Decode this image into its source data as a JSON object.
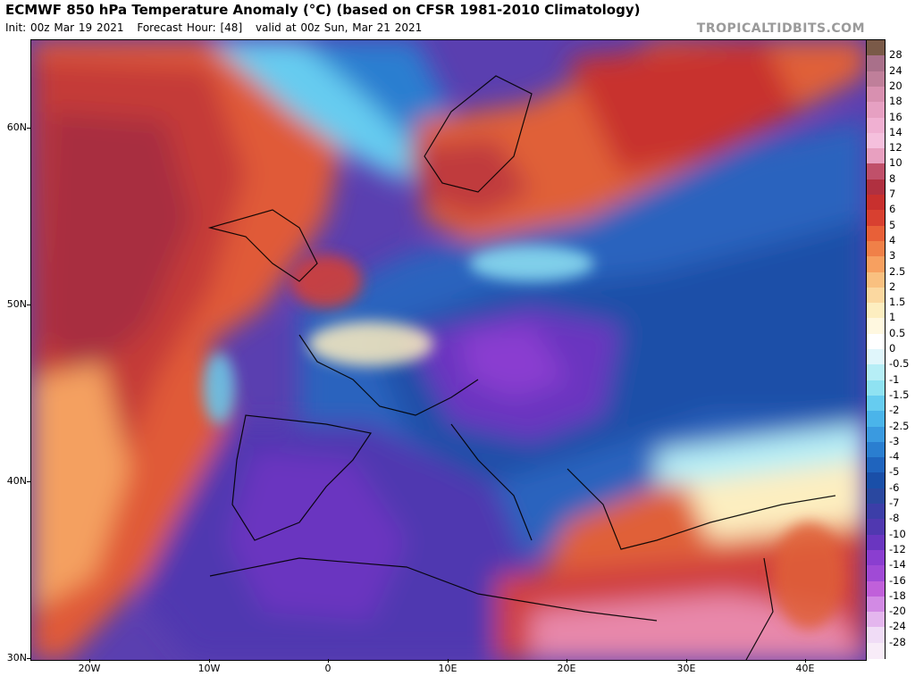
{
  "header": {
    "title": "ECMWF 850 hPa Temperature Anomaly (°C) (based on CFSR 1981-2010 Climatology)",
    "init": "Init: 00z Mar 19 2021",
    "forecast_hour": "Forecast Hour: [48]",
    "valid": "valid at 00z Sun, Mar 21 2021",
    "site": "TROPICALTIDBITS.COM"
  },
  "axes": {
    "lat_labels": [
      "60N",
      "50N",
      "40N",
      "30N"
    ],
    "lon_labels": [
      "20W",
      "10W",
      "0",
      "10E",
      "20E",
      "30E",
      "40E"
    ]
  },
  "colorbar": {
    "labels": [
      "28",
      "24",
      "20",
      "18",
      "16",
      "14",
      "12",
      "10",
      "8",
      "7",
      "6",
      "5",
      "4",
      "3",
      "2.5",
      "2",
      "1.5",
      "1",
      "0.5",
      "0",
      "-0.5",
      "-1",
      "-1.5",
      "-2",
      "-2.5",
      "-3",
      "-4",
      "-5",
      "-6",
      "-7",
      "-8",
      "-10",
      "-12",
      "-14",
      "-16",
      "-18",
      "-20",
      "-24",
      "-28"
    ],
    "colors": [
      "#7a5a48",
      "#a9708a",
      "#bf7f9a",
      "#d890b0",
      "#e6a0c2",
      "#f0b0d2",
      "#f5c0dd",
      "#e8a0c0",
      "#c0506a",
      "#b03040",
      "#c8302e",
      "#d84030",
      "#e86038",
      "#f08048",
      "#f7a060",
      "#f9c080",
      "#fbd8a0",
      "#fdeec0",
      "#fff8e0",
      "#ffffff",
      "#e0f6fb",
      "#b6eef6",
      "#8fe2f2",
      "#66ccf0",
      "#4ab4ea",
      "#3a9ae0",
      "#2a7ed0",
      "#1f64be",
      "#1a4fa8",
      "#2a48a0",
      "#3c3ea8",
      "#5038b0",
      "#6a36c0",
      "#8a3ed0",
      "#a04ad6",
      "#c060da",
      "#d28ae4",
      "#e4b6ee",
      "#f0dcf6"
    ]
  },
  "map": {
    "lon_range": [
      -25,
      45
    ],
    "lat_range": [
      30,
      65
    ]
  }
}
